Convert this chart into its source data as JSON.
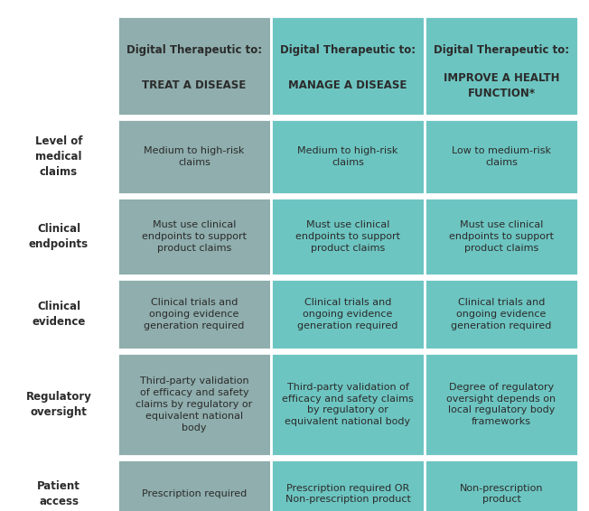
{
  "bg_color": "#ffffff",
  "col1_color": "#8faead",
  "col2_color": "#6dc5c1",
  "col3_color": "#6dc5c1",
  "text_color": "#2b2b2b",
  "row_labels": [
    "Level of\nmedical\nclaims",
    "Clinical\nendpoints",
    "Clinical\nevidence",
    "Regulatory\noversight",
    "Patient\naccess"
  ],
  "col_headers_line1": [
    "Digital Therapeutic to:",
    "Digital Therapeutic to:",
    "Digital Therapeutic to:"
  ],
  "col_headers_line2": [
    "TREAT A DISEASE",
    "MANAGE A DISEASE",
    "IMPROVE A HEALTH\nFUNCTION*"
  ],
  "cells": [
    [
      "Medium to high-risk\nclaims",
      "Medium to high-risk\nclaims",
      "Low to medium-risk\nclaims"
    ],
    [
      "Must use clinical\nendpoints to support\nproduct claims",
      "Must use clinical\nendpoints to support\nproduct claims",
      "Must use clinical\nendpoints to support\nproduct claims"
    ],
    [
      "Clinical trials and\nongoing evidence\ngeneration required",
      "Clinical trials and\nongoing evidence\ngeneration required",
      "Clinical trials and\nongoing evidence\ngeneration required"
    ],
    [
      "Third-party validation\nof efficacy and safety\nclaims by regulatory or\nequivalent national\nbody",
      "Third-party validation of\nefficacy and safety claims\nby regulatory or\nequivalent national body",
      "Degree of regulatory\noversight depends on\nlocal regulatory body\nframeworks"
    ],
    [
      "Prescription required",
      "Prescription required OR\nNon-prescription product",
      "Non-prescription\nproduct"
    ]
  ],
  "figsize": [
    6.52,
    5.66
  ],
  "dpi": 100
}
